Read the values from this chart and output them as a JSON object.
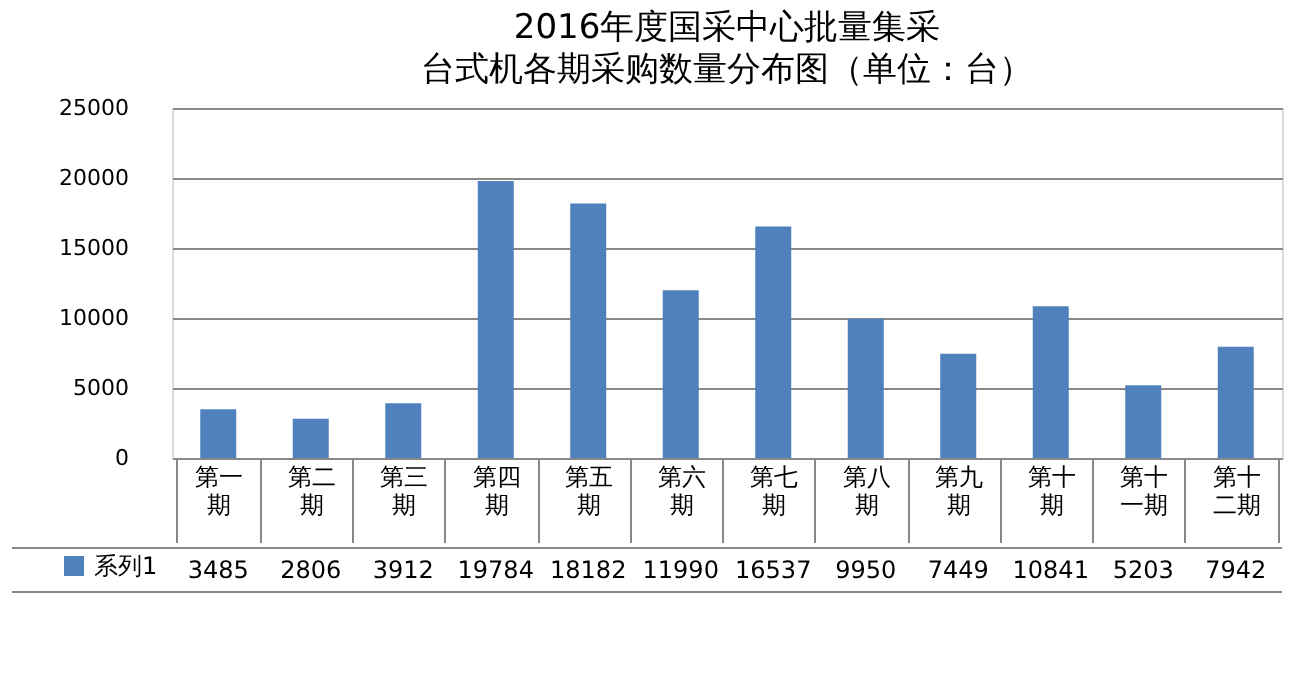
{
  "chart_data": {
    "type": "bar",
    "title": "2016年度国采中心批量集采",
    "subtitle": "台式机各期采购数量分布图（单位：台）",
    "categories": [
      "第一期",
      "第二期",
      "第三期",
      "第四期",
      "第五期",
      "第六期",
      "第七期",
      "第八期",
      "第九期",
      "第十期",
      "第十一期",
      "第十二期"
    ],
    "series": [
      {
        "name": "系列1",
        "color": "#4f81bd",
        "values": [
          3485,
          2806,
          3912,
          19784,
          18182,
          11990,
          16537,
          9950,
          7449,
          10841,
          5203,
          7942
        ]
      }
    ],
    "ylim": [
      0,
      25000
    ],
    "yticks": [
      0,
      5000,
      10000,
      15000,
      20000,
      25000
    ],
    "grid": "y",
    "legend": "bottom left",
    "data_labels": true
  }
}
